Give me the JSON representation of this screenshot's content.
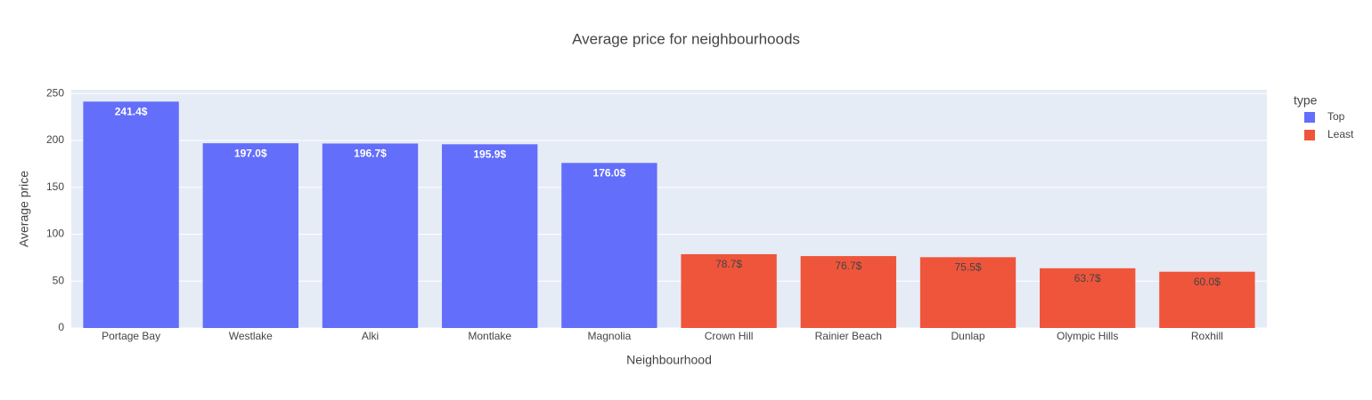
{
  "chart_data": {
    "type": "bar",
    "title": "Average price for neighbourhoods",
    "x_label": "Neighbourhood",
    "y_label": "Average price",
    "legend_title": "type",
    "categories": [
      "Portage Bay",
      "Westlake",
      "Alki",
      "Montlake",
      "Magnolia",
      "Crown Hill",
      "Rainier Beach",
      "Dunlap",
      "Olympic Hills",
      "Roxhill"
    ],
    "series": [
      {
        "name": "Top",
        "color": "#636efa",
        "label_color": "#ffffff",
        "values": [
          241.4,
          197.0,
          196.7,
          195.9,
          176.0,
          null,
          null,
          null,
          null,
          null
        ],
        "value_labels": [
          "241.4$",
          "197.0$",
          "196.7$",
          "195.9$",
          "176.0$",
          null,
          null,
          null,
          null,
          null
        ]
      },
      {
        "name": "Least",
        "color": "#ef553b",
        "label_color": "#444444",
        "values": [
          null,
          null,
          null,
          null,
          null,
          78.7,
          76.7,
          75.5,
          63.7,
          60.0
        ],
        "value_labels": [
          null,
          null,
          null,
          null,
          null,
          "78.7$",
          "76.7$",
          "75.5$",
          "63.7$",
          "60.0$"
        ]
      }
    ],
    "ylim": [
      0,
      254
    ],
    "yticks": [
      0,
      50,
      100,
      150,
      200,
      250
    ],
    "grid": true,
    "legend": "right"
  }
}
